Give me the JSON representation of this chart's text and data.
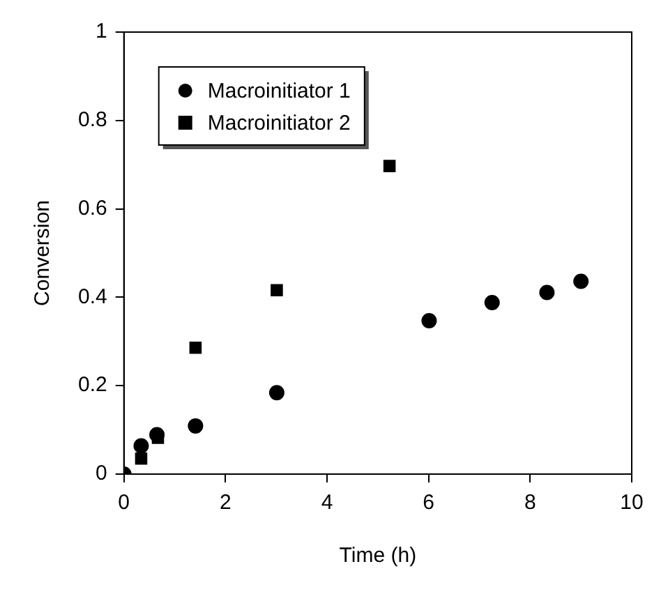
{
  "chart_data": {
    "type": "scatter",
    "xlabel": "Time (h)",
    "ylabel": "Conversion",
    "xlim": [
      0,
      10
    ],
    "xticks": [
      0,
      2,
      4,
      6,
      8,
      10
    ],
    "ylim": [
      0,
      1
    ],
    "yticks": [
      0,
      0.2,
      0.4,
      0.6,
      0.8,
      1
    ],
    "grid": false,
    "legend": "top left",
    "series": [
      {
        "name": "Macroinitiator 1",
        "color": "#000000",
        "marker": "circle",
        "x": [
          0,
          0.34,
          0.65,
          1.41,
          3.01,
          6.01,
          7.25,
          8.33,
          9.0
        ],
        "values": [
          0,
          0.064,
          0.089,
          0.109,
          0.184,
          0.347,
          0.388,
          0.411,
          0.436
        ]
      },
      {
        "name": "Macroinitiator 2",
        "color": "#000000",
        "marker": "square",
        "x": [
          0.34,
          0.67,
          1.41,
          3.01,
          5.23
        ],
        "values": [
          0.035,
          0.082,
          0.286,
          0.416,
          0.697
        ]
      }
    ]
  }
}
